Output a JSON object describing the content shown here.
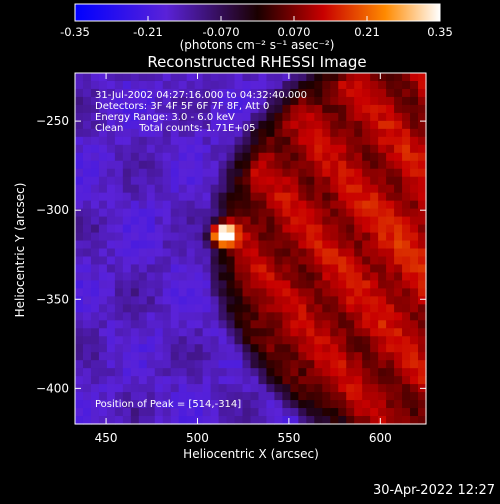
{
  "colorbar": {
    "tick_labels": [
      "-0.35",
      "-0.21",
      "-0.070",
      "0.070",
      "0.21",
      "0.35"
    ],
    "range": [
      -0.35,
      0.35
    ],
    "unit_label": "(photons cm⁻² s⁻¹ asec⁻²)"
  },
  "chart_data": {
    "type": "heatmap",
    "title": "Reconstructed RHESSI Image",
    "xlabel": "Heliocentric X (arcsec)",
    "ylabel": "Heliocentric Y (arcsec)",
    "xlim": [
      433,
      625
    ],
    "ylim": [
      -420,
      -223
    ],
    "x_ticks": [
      450,
      500,
      550,
      600
    ],
    "y_ticks": [
      -250,
      -300,
      -350,
      -400
    ],
    "peak": {
      "x": 514,
      "y": -314
    },
    "value_range": [
      -0.35,
      0.35
    ],
    "annotations": [
      "31-Jul-2002 04:27:16.000 to 04:32:40.000",
      "Detectors: 3F 4F 5F 6F 7F 8F, Att 0",
      "Energy Range: 3.0 - 6.0 keV",
      "Clean     Total counts: 1.71E+05",
      "Position of Peak = [514,-314]"
    ]
  },
  "footer": {
    "timestamp": "30-Apr-2022 12:27"
  }
}
